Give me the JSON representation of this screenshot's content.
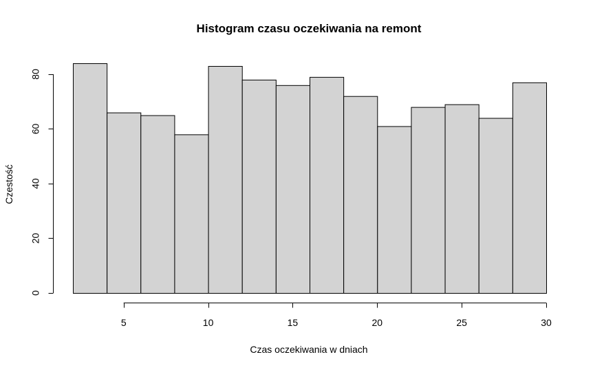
{
  "chart_data": {
    "type": "bar",
    "title": "Histogram czasu oczekiwania na remont",
    "xlabel": "Czas oczekiwania w dniach",
    "ylabel": "Czestość",
    "bin_edges": [
      2,
      4,
      6,
      8,
      10,
      12,
      14,
      16,
      18,
      20,
      22,
      24,
      26,
      28,
      30
    ],
    "values": [
      84,
      66,
      65,
      58,
      83,
      78,
      76,
      79,
      72,
      61,
      68,
      69,
      64,
      77
    ],
    "xlim": [
      2,
      30
    ],
    "ylim": [
      0,
      84
    ],
    "x_ticks": [
      5,
      10,
      15,
      20,
      25,
      30
    ],
    "y_ticks": [
      0,
      20,
      40,
      60,
      80
    ],
    "grid": false,
    "bar_color": "#d3d3d3",
    "edge_color": "#000000"
  }
}
